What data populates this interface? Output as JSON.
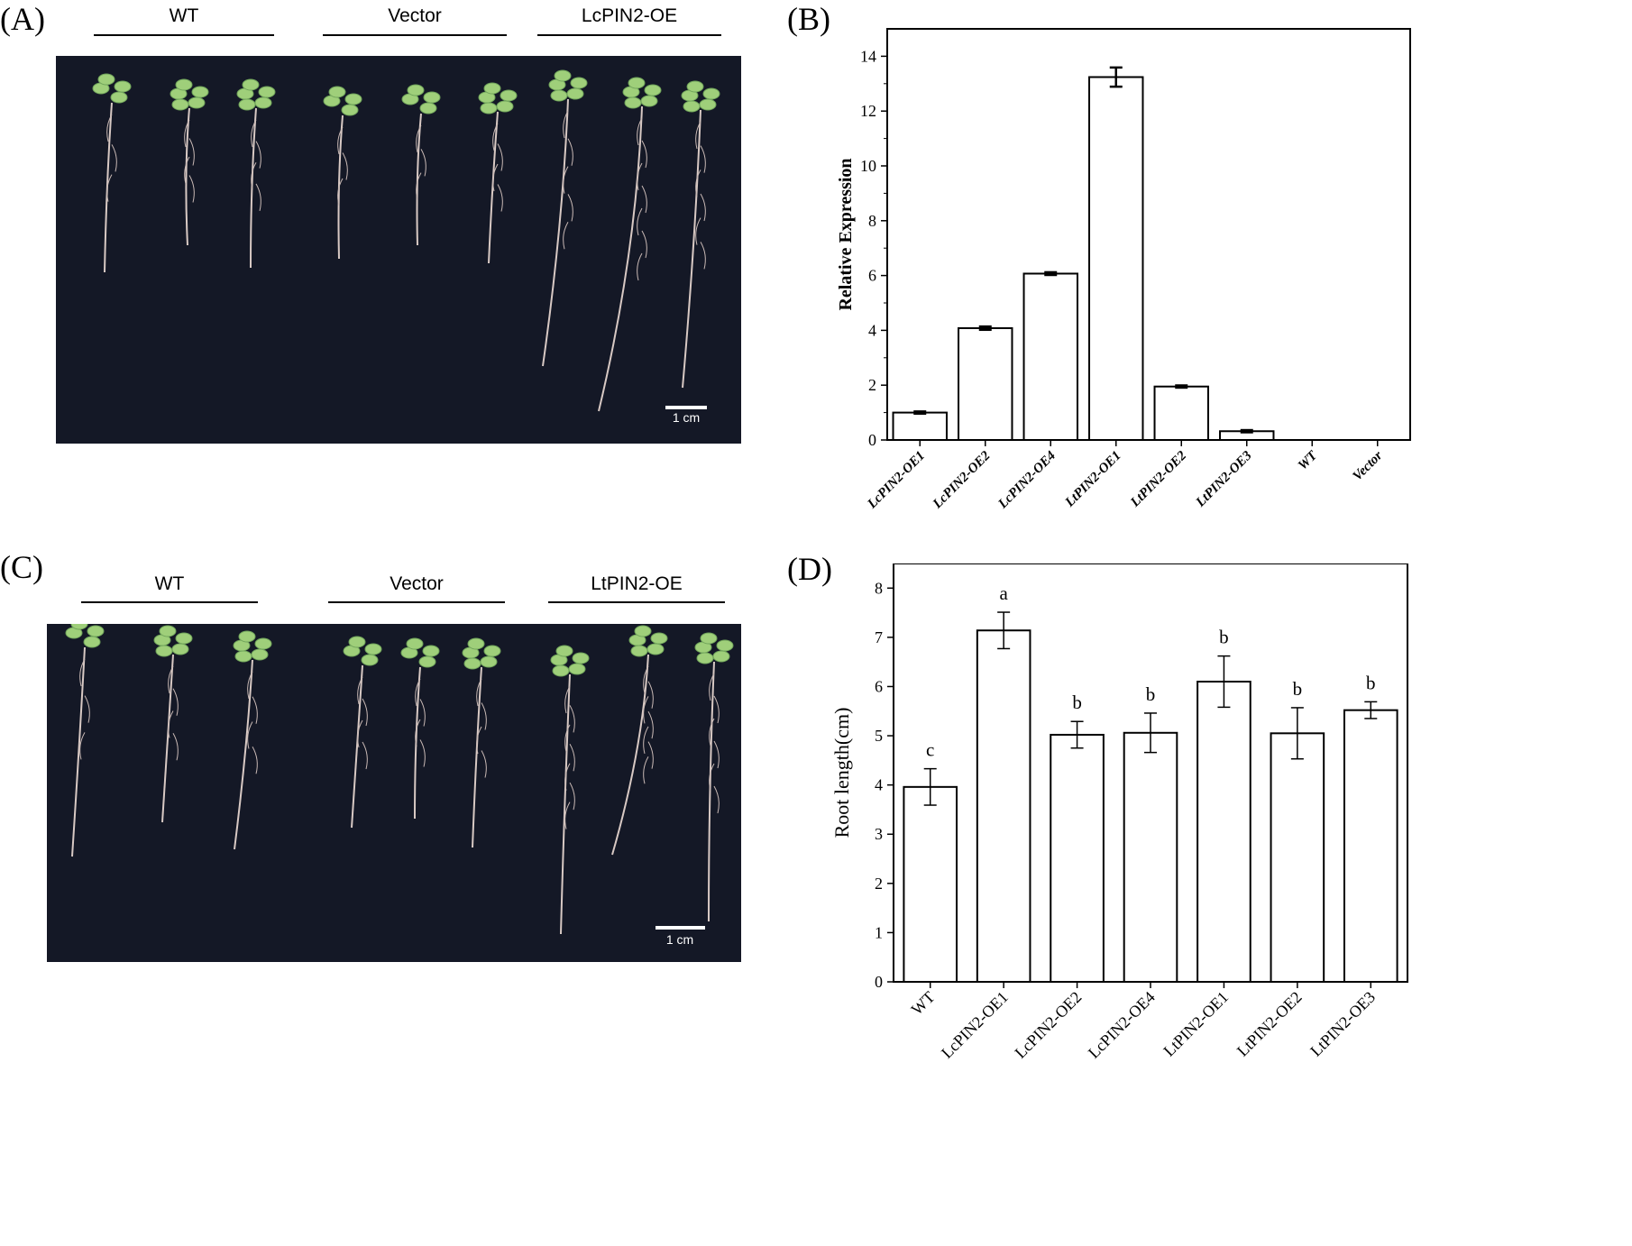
{
  "panels": {
    "a": {
      "label": "(A)",
      "groups": [
        "WT",
        "Vector",
        "LcPIN2-OE"
      ],
      "scale_bar": "1 cm"
    },
    "b": {
      "label": "(B)"
    },
    "c": {
      "label": "(C)",
      "groups": [
        "WT",
        "Vector",
        "LtPIN2-OE"
      ],
      "scale_bar": "1 cm"
    },
    "d": {
      "label": "(D)"
    }
  },
  "chart_data": [
    {
      "type": "bar",
      "panel": "B",
      "categories": [
        "LcPIN2-OE1",
        "LcPIN2-OE2",
        "LcPIN2-OE4",
        "LtPIN2-OE1",
        "LtPIN2-OE2",
        "LtPIN2-OE3",
        "WT",
        "Vector"
      ],
      "values": [
        1.0,
        4.08,
        6.07,
        13.24,
        1.95,
        0.32,
        0,
        0
      ],
      "errors": [
        0.04,
        0.06,
        0.05,
        0.35,
        0.04,
        0.04,
        0,
        0
      ],
      "ylabel": "Relative Expression",
      "ylim": [
        0,
        15
      ],
      "yticks": [
        0,
        2,
        4,
        6,
        8,
        10,
        12,
        14
      ],
      "tick_labels_italic": true
    },
    {
      "type": "bar",
      "panel": "D",
      "categories": [
        "WT",
        "LcPIN2-OE1",
        "LcPIN2-OE2",
        "LcPIN2-OE4",
        "LtPIN2-OE1",
        "LtPIN2-OE2",
        "LtPIN2-OE3"
      ],
      "values": [
        3.96,
        7.14,
        5.02,
        5.06,
        6.1,
        5.05,
        5.52
      ],
      "errors": [
        0.37,
        0.37,
        0.27,
        0.4,
        0.52,
        0.52,
        0.17
      ],
      "letters": [
        "c",
        "a",
        "b",
        "b",
        "b",
        "b",
        "b"
      ],
      "ylabel": "Root length(cm)",
      "ylim": [
        0,
        8.5
      ],
      "yticks": [
        0,
        1,
        2,
        3,
        4,
        5,
        6,
        7,
        8
      ],
      "tick_labels_italic": false
    }
  ]
}
